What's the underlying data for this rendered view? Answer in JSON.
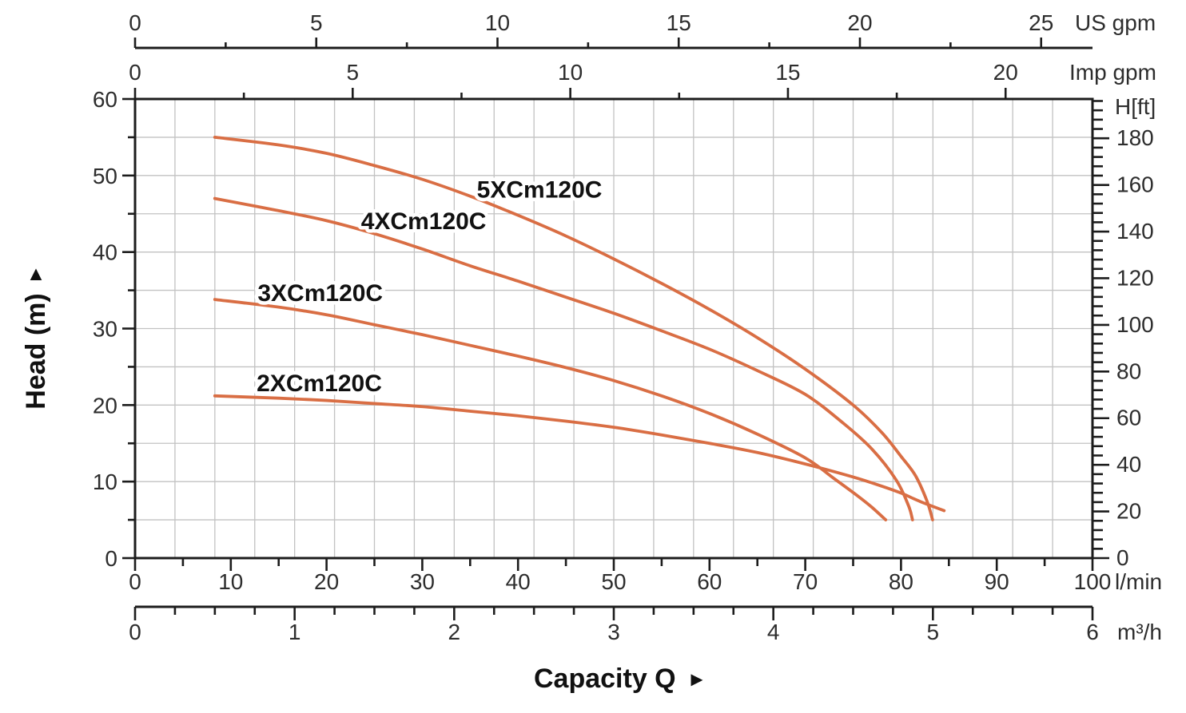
{
  "colors": {
    "curve": "#d96e44",
    "grid": "#c2c2c2",
    "axis": "#1c1c1c",
    "tick_label": "#2d2d2d",
    "label": "#111111",
    "background": "#ffffff"
  },
  "chart_data": {
    "type": "line",
    "title": "",
    "xlabel": "Capacity Q",
    "xlabel_arrow": "►",
    "ylabel": "Head (m)",
    "ylabel_arrow": "▲",
    "x_range_l_min": [
      0,
      100
    ],
    "y_range_m": [
      0,
      60
    ],
    "grid": {
      "x_step_m3h": 0.25,
      "y_step_m": 5,
      "grid_on": true
    },
    "axes": {
      "us_gpm": {
        "unit": "US gpm",
        "majors": [
          0,
          5,
          10,
          15,
          20,
          25
        ],
        "minor_step": 2.5,
        "l_per_unit": 3.7854
      },
      "imp_gpm": {
        "unit": "Imp gpm",
        "majors": [
          0,
          5,
          10,
          15,
          20
        ],
        "minor_step": 2.5,
        "l_per_unit": 4.5461
      },
      "l_min": {
        "unit": "l/min",
        "majors": [
          0,
          10,
          20,
          30,
          40,
          50,
          60,
          70,
          80,
          90,
          100
        ],
        "minor_step": 5,
        "l_per_unit": 1
      },
      "m3_h": {
        "unit": "m³/h",
        "majors": [
          0,
          1,
          2,
          3,
          4,
          5,
          6
        ],
        "minor_step": 0.25,
        "l_per_unit": 16.6667
      },
      "head_m": {
        "unit": "Head (m)",
        "majors": [
          0,
          10,
          20,
          30,
          40,
          50,
          60
        ],
        "minor_step": 5
      },
      "head_ft": {
        "unit": "H[ft]",
        "majors": [
          0,
          20,
          40,
          60,
          80,
          100,
          120,
          140,
          160,
          180
        ],
        "minor_step": 4,
        "max": 196.8,
        "m_per_unit": 0.3048
      }
    },
    "series": [
      {
        "name": "5XCm120C",
        "label_q": 35.7,
        "label_h": 47.1,
        "points": [
          [
            8.33,
            55.0
          ],
          [
            15,
            54.0
          ],
          [
            20,
            52.9
          ],
          [
            25,
            51.3
          ],
          [
            30,
            49.5
          ],
          [
            35,
            47.3
          ],
          [
            40,
            44.8
          ],
          [
            45,
            42.1
          ],
          [
            50,
            39.1
          ],
          [
            55,
            35.9
          ],
          [
            60,
            32.5
          ],
          [
            65,
            28.8
          ],
          [
            70,
            24.7
          ],
          [
            75,
            20.0
          ],
          [
            78,
            16.4
          ],
          [
            80,
            13.3
          ],
          [
            81.5,
            10.8
          ],
          [
            82.7,
            7.5
          ],
          [
            83.3,
            5.0
          ]
        ]
      },
      {
        "name": "4XCm120C",
        "label_q": 23.6,
        "label_h": 43.0,
        "points": [
          [
            8.33,
            47.0
          ],
          [
            15,
            45.4
          ],
          [
            20,
            44.1
          ],
          [
            25,
            42.4
          ],
          [
            30,
            40.4
          ],
          [
            35,
            38.2
          ],
          [
            40,
            36.2
          ],
          [
            45,
            34.1
          ],
          [
            50,
            32.0
          ],
          [
            55,
            29.7
          ],
          [
            60,
            27.3
          ],
          [
            65,
            24.5
          ],
          [
            70,
            21.4
          ],
          [
            74,
            17.6
          ],
          [
            77,
            14.2
          ],
          [
            79.5,
            10.2
          ],
          [
            80.8,
            6.8
          ],
          [
            81.2,
            5.0
          ]
        ]
      },
      {
        "name": "3XCm120C",
        "label_q": 12.8,
        "label_h": 33.6,
        "points": [
          [
            8.33,
            33.8
          ],
          [
            15,
            32.8
          ],
          [
            20,
            31.8
          ],
          [
            25,
            30.5
          ],
          [
            30,
            29.2
          ],
          [
            35,
            27.8
          ],
          [
            40,
            26.4
          ],
          [
            45,
            24.9
          ],
          [
            50,
            23.2
          ],
          [
            55,
            21.2
          ],
          [
            60,
            18.9
          ],
          [
            65,
            16.2
          ],
          [
            70,
            13.1
          ],
          [
            73,
            10.4
          ],
          [
            75.5,
            8.1
          ],
          [
            77,
            6.6
          ],
          [
            78.4,
            5.0
          ]
        ]
      },
      {
        "name": "2XCm120C",
        "label_q": 12.7,
        "label_h": 21.8,
        "points": [
          [
            8.33,
            21.2
          ],
          [
            15,
            20.9
          ],
          [
            20,
            20.6
          ],
          [
            25,
            20.2
          ],
          [
            30,
            19.8
          ],
          [
            35,
            19.2
          ],
          [
            40,
            18.6
          ],
          [
            45,
            17.9
          ],
          [
            50,
            17.1
          ],
          [
            55,
            16.1
          ],
          [
            60,
            15.0
          ],
          [
            65,
            13.8
          ],
          [
            70,
            12.3
          ],
          [
            75,
            10.6
          ],
          [
            78,
            9.4
          ],
          [
            80,
            8.5
          ],
          [
            82,
            7.4
          ],
          [
            84.5,
            6.2
          ]
        ]
      }
    ]
  }
}
